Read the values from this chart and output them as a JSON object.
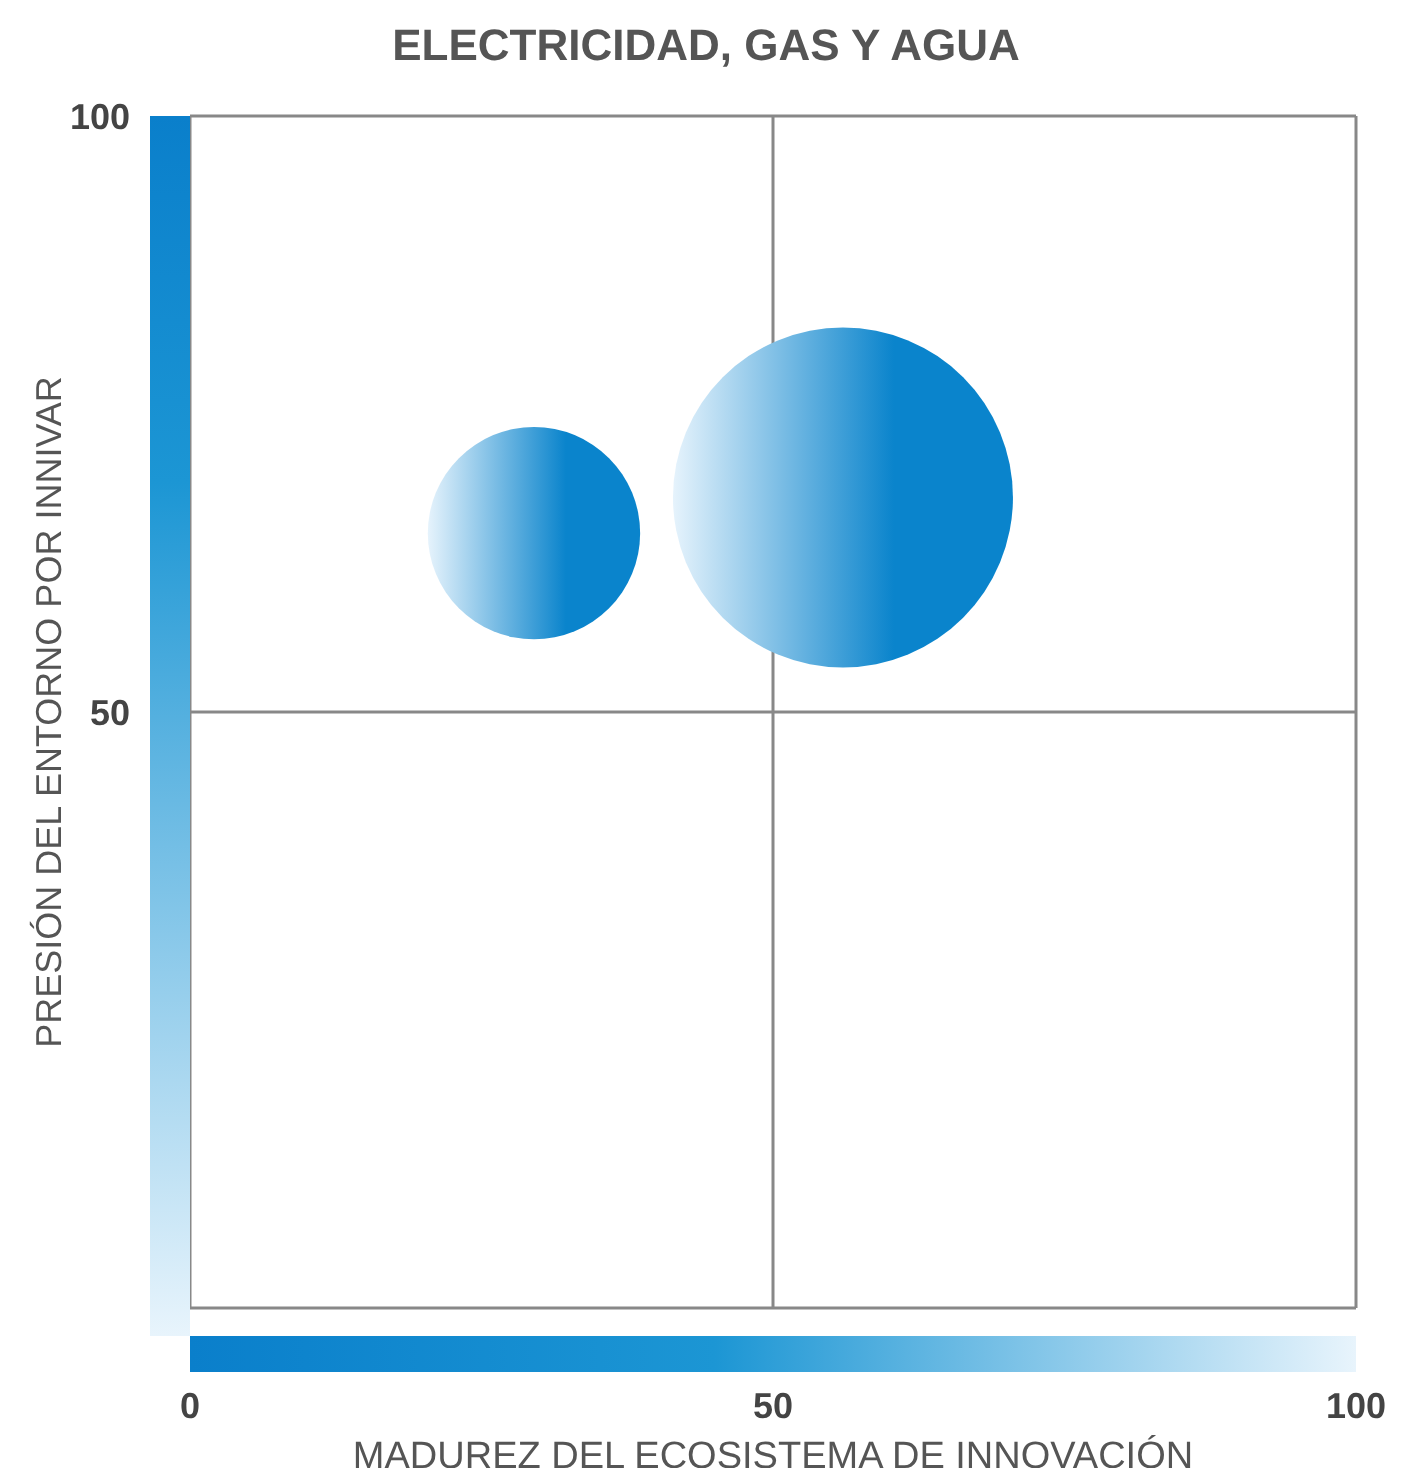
{
  "chart_data": {
    "type": "bubble",
    "title": "ELECTRICIDAD, GAS Y AGUA",
    "xlabel": "MADUREZ DEL ECOSISTEMA DE INNOVACIÓN",
    "ylabel": "PRESIÓN DEL ENTORNO POR INNIVAR",
    "series": [
      {
        "color": "#0a84cc",
        "x": [
          29.5,
          56
        ],
        "values": [
          65,
          68
        ],
        "sizes": [
          0.39,
          1
        ]
      }
    ],
    "xlim": [
      0,
      100
    ],
    "xticks": [
      0,
      50,
      100
    ],
    "ylim": [
      0,
      100
    ],
    "yticks": [
      {
        "value": 0,
        "label": null
      },
      50,
      100
    ],
    "grid": true
  }
}
